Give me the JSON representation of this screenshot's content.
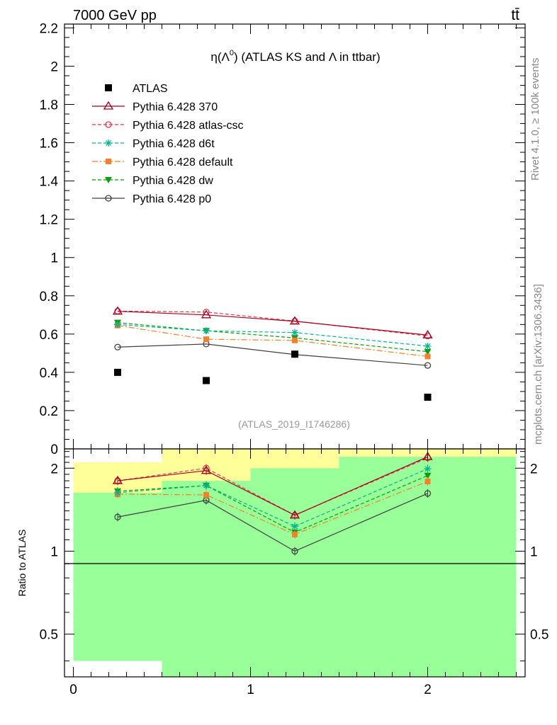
{
  "header": {
    "energy_label": "7000 GeV pp",
    "process_label": "tt̄",
    "rivet_label": "Rivet 4.1.0, ≥ 100k events",
    "mcplots_label": "mcplots.cern.ch [arXiv:1306.3436]"
  },
  "chart_data": [
    {
      "type": "line",
      "title_parts": {
        "eta": "η(Λ",
        "sup": "0",
        "rest": ") (ATLAS KS and Λ in ttbar)"
      },
      "analysis_label": "(ATLAS_2019_I1746286)",
      "xlim": [
        -0.05,
        2.55
      ],
      "ylim": [
        0,
        2.22
      ],
      "y_ticks": [
        {
          "v": 0,
          "label": "0"
        },
        {
          "v": 0.2,
          "label": "0.2"
        },
        {
          "v": 0.4,
          "label": "0.4"
        },
        {
          "v": 0.6,
          "label": "0.6"
        },
        {
          "v": 0.8,
          "label": "0.8"
        },
        {
          "v": 1.0,
          "label": "1"
        },
        {
          "v": 1.2,
          "label": "1.2"
        },
        {
          "v": 1.4,
          "label": "1.4"
        },
        {
          "v": 1.6,
          "label": "1.6"
        },
        {
          "v": 1.8,
          "label": "1.8"
        },
        {
          "v": 2.0,
          "label": "2"
        },
        {
          "v": 2.2,
          "label": "2.2"
        }
      ],
      "x": [
        0.25,
        0.75,
        1.25,
        2.0
      ],
      "data": {
        "name": "ATLAS",
        "values": [
          0.4,
          0.357,
          0.495,
          0.27
        ],
        "errors": [
          0.006,
          0.006,
          0.008,
          0.005
        ]
      },
      "series": [
        {
          "name": "Pythia 6.428 370",
          "color": "#a0001f",
          "dash": "",
          "marker": "triangle-open",
          "values": [
            0.719,
            0.7,
            0.667,
            0.595
          ]
        },
        {
          "name": "Pythia 6.428 atlas-csc",
          "color": "#e8344e",
          "dash": "5,3",
          "marker": "circle-open",
          "values": [
            0.72,
            0.715,
            0.668,
            0.59
          ]
        },
        {
          "name": "Pythia 6.428 d6t",
          "color": "#00b58f",
          "dash": "5,3",
          "marker": "star",
          "values": [
            0.65,
            0.617,
            0.608,
            0.537
          ]
        },
        {
          "name": "Pythia 6.428 default",
          "color": "#f67f2a",
          "dash": "8,3,2,3",
          "marker": "square",
          "values": [
            0.645,
            0.573,
            0.567,
            0.483
          ]
        },
        {
          "name": "Pythia 6.428 dw",
          "color": "#0a9e0a",
          "dash": "5,3",
          "marker": "triangle-down",
          "values": [
            0.66,
            0.617,
            0.58,
            0.508
          ]
        },
        {
          "name": "Pythia 6.428 p0",
          "color": "#404040",
          "dash": "",
          "marker": "circle-open",
          "values": [
            0.532,
            0.548,
            0.493,
            0.436
          ]
        }
      ]
    },
    {
      "type": "line",
      "ylabel": "Ratio to ATLAS",
      "yscale": "log",
      "xlim": [
        -0.05,
        2.55
      ],
      "ylim": [
        0.35,
        2.35
      ],
      "x_ticks": [
        {
          "v": 0,
          "label": "0"
        },
        {
          "v": 1,
          "label": "1"
        },
        {
          "v": 2,
          "label": "2"
        }
      ],
      "y_ticks": [
        {
          "v": 0.5,
          "label": "0.5"
        },
        {
          "v": 1,
          "label": "1"
        },
        {
          "v": 2,
          "label": "2"
        }
      ],
      "bands": [
        {
          "x0": 0.0,
          "x1": 0.5,
          "yellow": [
            0.4,
            2.1
          ],
          "green": [
            0.4,
            1.63
          ]
        },
        {
          "x0": 0.5,
          "x1": 1.0,
          "yellow": [
            0.35,
            2.35
          ],
          "green": [
            0.35,
            1.8
          ]
        },
        {
          "x0": 1.0,
          "x1": 1.5,
          "yellow": [
            0.35,
            2.35
          ],
          "green": [
            0.35,
            2.0
          ]
        },
        {
          "x0": 1.5,
          "x1": 2.5,
          "yellow": [
            0.35,
            2.35
          ],
          "green": [
            0.35,
            2.2
          ]
        }
      ],
      "x": [
        0.25,
        0.75,
        1.25,
        2.0
      ],
      "series": [
        {
          "name": "Pythia 6.428 370",
          "values": [
            1.8,
            1.96,
            1.35,
            2.2
          ]
        },
        {
          "name": "Pythia 6.428 atlas-csc",
          "values": [
            1.8,
            2.0,
            1.35,
            2.18
          ]
        },
        {
          "name": "Pythia 6.428 d6t",
          "values": [
            1.63,
            1.73,
            1.23,
            1.99
          ]
        },
        {
          "name": "Pythia 6.428 default",
          "values": [
            1.61,
            1.6,
            1.15,
            1.79
          ]
        },
        {
          "name": "Pythia 6.428 dw",
          "values": [
            1.65,
            1.73,
            1.17,
            1.88
          ]
        },
        {
          "name": "Pythia 6.428 p0",
          "values": [
            1.33,
            1.53,
            1.0,
            1.62
          ]
        }
      ]
    }
  ]
}
